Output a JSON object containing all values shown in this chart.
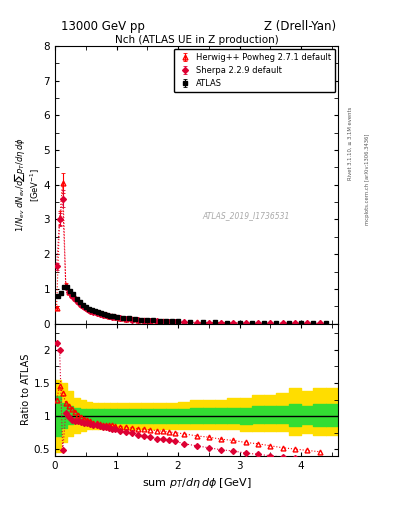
{
  "title_left": "13000 GeV pp",
  "title_right": "Z (Drell-Yan)",
  "plot_title": "Nch (ATLAS UE in Z production)",
  "xlabel": "sum p_{T}/d\\eta d\\phi [GeV]",
  "ylabel_main": "1/N_{ev} dN_{ev}/dsum p_{T}/d\\eta d\\phi",
  "ylabel_ratio": "Ratio to ATLAS",
  "right_label": "Rivet 3.1.10, ≥ 3.1M events",
  "right_label2": "mcplots.cern.ch [arXiv:1306.3436]",
  "watermark": "ATLAS_2019_I1736531",
  "ylim_main": [
    0,
    8
  ],
  "ylim_ratio": [
    0.4,
    2.4
  ],
  "xlim": [
    0,
    4.6
  ],
  "atlas_x": [
    0.05,
    0.1,
    0.15,
    0.2,
    0.25,
    0.3,
    0.35,
    0.4,
    0.45,
    0.5,
    0.55,
    0.6,
    0.65,
    0.7,
    0.75,
    0.8,
    0.85,
    0.9,
    0.95,
    1.0,
    1.1,
    1.2,
    1.3,
    1.4,
    1.5,
    1.6,
    1.7,
    1.8,
    1.9,
    2.0,
    2.2,
    2.4,
    2.6,
    2.8,
    3.0,
    3.2,
    3.4,
    3.6,
    3.8,
    4.0,
    4.2,
    4.4
  ],
  "atlas_y": [
    0.8,
    0.88,
    1.05,
    1.05,
    0.95,
    0.85,
    0.72,
    0.62,
    0.53,
    0.47,
    0.42,
    0.38,
    0.35,
    0.32,
    0.29,
    0.27,
    0.25,
    0.23,
    0.21,
    0.2,
    0.17,
    0.15,
    0.13,
    0.115,
    0.1,
    0.09,
    0.082,
    0.074,
    0.067,
    0.061,
    0.05,
    0.041,
    0.034,
    0.028,
    0.023,
    0.019,
    0.016,
    0.013,
    0.011,
    0.009,
    0.008,
    0.007
  ],
  "atlas_yerr": [
    0.03,
    0.03,
    0.04,
    0.04,
    0.03,
    0.03,
    0.025,
    0.022,
    0.018,
    0.016,
    0.013,
    0.012,
    0.01,
    0.01,
    0.009,
    0.008,
    0.007,
    0.007,
    0.006,
    0.006,
    0.005,
    0.004,
    0.004,
    0.003,
    0.003,
    0.002,
    0.002,
    0.002,
    0.002,
    0.002,
    0.001,
    0.001,
    0.001,
    0.001,
    0.001,
    0.001,
    0.001,
    0.001,
    0.001,
    0.001,
    0.001,
    0.001
  ],
  "herwig_x": [
    0.025,
    0.075,
    0.125,
    0.175,
    0.225,
    0.275,
    0.325,
    0.375,
    0.425,
    0.475,
    0.525,
    0.575,
    0.625,
    0.675,
    0.725,
    0.775,
    0.825,
    0.875,
    0.925,
    0.975,
    1.05,
    1.15,
    1.25,
    1.35,
    1.45,
    1.55,
    1.65,
    1.75,
    1.85,
    1.95,
    2.1,
    2.3,
    2.5,
    2.7,
    2.9,
    3.1,
    3.3,
    3.5,
    3.7,
    3.9,
    4.1,
    4.3
  ],
  "herwig_y": [
    0.45,
    3.05,
    4.05,
    1.1,
    0.92,
    0.82,
    0.73,
    0.65,
    0.57,
    0.5,
    0.45,
    0.4,
    0.36,
    0.33,
    0.3,
    0.27,
    0.25,
    0.23,
    0.21,
    0.19,
    0.165,
    0.14,
    0.12,
    0.105,
    0.092,
    0.082,
    0.073,
    0.065,
    0.058,
    0.052,
    0.042,
    0.034,
    0.028,
    0.023,
    0.018,
    0.015,
    0.012,
    0.01,
    0.008,
    0.007,
    0.006,
    0.005
  ],
  "herwig_yerr": [
    0.05,
    0.2,
    0.3,
    0.06,
    0.04,
    0.03,
    0.025,
    0.02,
    0.016,
    0.013,
    0.011,
    0.009,
    0.008,
    0.007,
    0.006,
    0.005,
    0.005,
    0.004,
    0.004,
    0.003,
    0.003,
    0.002,
    0.002,
    0.002,
    0.001,
    0.001,
    0.001,
    0.001,
    0.001,
    0.001,
    0.001,
    0.001,
    0.001,
    0.001,
    0.001,
    0.001,
    0.001,
    0.001,
    0.001,
    0.001,
    0.001,
    0.001
  ],
  "sherpa_x": [
    0.025,
    0.075,
    0.125,
    0.175,
    0.225,
    0.275,
    0.325,
    0.375,
    0.425,
    0.475,
    0.525,
    0.575,
    0.625,
    0.675,
    0.725,
    0.775,
    0.825,
    0.875,
    0.925,
    0.975,
    1.05,
    1.15,
    1.25,
    1.35,
    1.45,
    1.55,
    1.65,
    1.75,
    1.85,
    1.95,
    2.1,
    2.3,
    2.5,
    2.7,
    2.9,
    3.1,
    3.3,
    3.5,
    3.7,
    3.9,
    4.1,
    4.3
  ],
  "sherpa_y": [
    1.65,
    3.0,
    3.6,
    1.05,
    0.9,
    0.79,
    0.7,
    0.61,
    0.53,
    0.47,
    0.42,
    0.37,
    0.34,
    0.31,
    0.28,
    0.26,
    0.24,
    0.22,
    0.2,
    0.18,
    0.155,
    0.132,
    0.113,
    0.097,
    0.084,
    0.074,
    0.065,
    0.058,
    0.052,
    0.046,
    0.037,
    0.03,
    0.024,
    0.02,
    0.016,
    0.013,
    0.011,
    0.009,
    0.007,
    0.006,
    0.005,
    0.004
  ],
  "sherpa_yerr": [
    0.1,
    0.18,
    0.25,
    0.05,
    0.035,
    0.025,
    0.02,
    0.016,
    0.013,
    0.01,
    0.009,
    0.008,
    0.007,
    0.006,
    0.005,
    0.004,
    0.004,
    0.003,
    0.003,
    0.003,
    0.002,
    0.002,
    0.002,
    0.001,
    0.001,
    0.001,
    0.001,
    0.001,
    0.001,
    0.001,
    0.001,
    0.001,
    0.001,
    0.001,
    0.001,
    0.001,
    0.001,
    0.001,
    0.001,
    0.001,
    0.001,
    0.001
  ],
  "herwig_ratio": [
    1.25,
    1.45,
    1.35,
    1.2,
    1.15,
    1.1,
    1.06,
    1.02,
    0.99,
    0.96,
    0.94,
    0.92,
    0.9,
    0.89,
    0.88,
    0.87,
    0.87,
    0.86,
    0.86,
    0.85,
    0.84,
    0.83,
    0.82,
    0.81,
    0.8,
    0.79,
    0.78,
    0.77,
    0.76,
    0.75,
    0.73,
    0.7,
    0.68,
    0.65,
    0.63,
    0.6,
    0.58,
    0.55,
    0.52,
    0.5,
    0.48,
    0.46
  ],
  "sherpa_ratio": [
    2.1,
    2.0,
    0.48,
    1.05,
    0.98,
    0.94,
    0.93,
    0.92,
    0.91,
    0.9,
    0.89,
    0.88,
    0.87,
    0.86,
    0.85,
    0.84,
    0.83,
    0.82,
    0.81,
    0.8,
    0.78,
    0.76,
    0.74,
    0.72,
    0.7,
    0.68,
    0.66,
    0.65,
    0.63,
    0.62,
    0.58,
    0.55,
    0.52,
    0.49,
    0.47,
    0.44,
    0.42,
    0.4,
    0.38,
    0.36,
    0.34,
    0.32
  ],
  "band_x_edges": [
    0.0,
    0.1,
    0.2,
    0.3,
    0.4,
    0.5,
    0.6,
    0.7,
    0.8,
    0.9,
    1.0,
    1.2,
    1.4,
    1.6,
    1.8,
    2.0,
    2.2,
    2.4,
    2.6,
    2.8,
    3.0,
    3.2,
    3.4,
    3.6,
    3.8,
    4.0,
    4.2,
    4.4,
    4.6
  ],
  "green_lo": [
    0.7,
    0.82,
    0.88,
    0.9,
    0.9,
    0.9,
    0.9,
    0.9,
    0.9,
    0.9,
    0.9,
    0.9,
    0.9,
    0.9,
    0.9,
    0.9,
    0.9,
    0.9,
    0.9,
    0.9,
    0.88,
    0.9,
    0.9,
    0.9,
    0.85,
    0.88,
    0.85,
    0.85
  ],
  "green_hi": [
    1.3,
    1.2,
    1.15,
    1.12,
    1.1,
    1.1,
    1.1,
    1.1,
    1.1,
    1.1,
    1.1,
    1.1,
    1.1,
    1.1,
    1.1,
    1.1,
    1.12,
    1.12,
    1.12,
    1.12,
    1.12,
    1.15,
    1.15,
    1.15,
    1.18,
    1.15,
    1.18,
    1.18
  ],
  "yellow_lo": [
    0.45,
    0.6,
    0.7,
    0.75,
    0.78,
    0.8,
    0.8,
    0.8,
    0.8,
    0.8,
    0.8,
    0.8,
    0.8,
    0.8,
    0.8,
    0.8,
    0.8,
    0.8,
    0.8,
    0.8,
    0.78,
    0.78,
    0.78,
    0.78,
    0.72,
    0.75,
    0.72,
    0.72
  ],
  "yellow_hi": [
    1.55,
    1.5,
    1.38,
    1.28,
    1.25,
    1.22,
    1.2,
    1.2,
    1.2,
    1.2,
    1.2,
    1.2,
    1.2,
    1.2,
    1.2,
    1.22,
    1.25,
    1.25,
    1.25,
    1.28,
    1.28,
    1.32,
    1.32,
    1.35,
    1.42,
    1.38,
    1.42,
    1.42
  ],
  "bg_color": "#ffffff",
  "atlas_color": "#000000",
  "herwig_color": "#ff0000",
  "sherpa_color": "#dd0033",
  "green_band_color": "#33dd33",
  "yellow_band_color": "#ffdd00"
}
